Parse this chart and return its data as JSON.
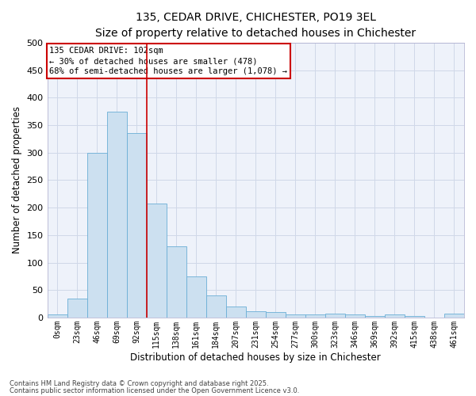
{
  "title_line1": "135, CEDAR DRIVE, CHICHESTER, PO19 3EL",
  "title_line2": "Size of property relative to detached houses in Chichester",
  "xlabel": "Distribution of detached houses by size in Chichester",
  "ylabel": "Number of detached properties",
  "annotation_line1": "135 CEDAR DRIVE: 102sqm",
  "annotation_line2": "← 30% of detached houses are smaller (478)",
  "annotation_line3": "68% of semi-detached houses are larger (1,078) →",
  "bar_color": "#cce0f0",
  "bar_edge_color": "#6aaed6",
  "vline_color": "#cc0000",
  "annotation_box_color": "#cc0000",
  "grid_color": "#d0d8e8",
  "bg_color": "#eef2fa",
  "categories": [
    "0sqm",
    "23sqm",
    "46sqm",
    "69sqm",
    "92sqm",
    "115sqm",
    "138sqm",
    "161sqm",
    "184sqm",
    "207sqm",
    "231sqm",
    "254sqm",
    "277sqm",
    "300sqm",
    "323sqm",
    "346sqm",
    "369sqm",
    "392sqm",
    "415sqm",
    "438sqm",
    "461sqm"
  ],
  "values": [
    5,
    35,
    300,
    375,
    335,
    208,
    130,
    75,
    40,
    20,
    12,
    10,
    5,
    5,
    7,
    5,
    3,
    5,
    3,
    0,
    7
  ],
  "vline_x": 4.5,
  "ylim": [
    0,
    500
  ],
  "yticks": [
    0,
    50,
    100,
    150,
    200,
    250,
    300,
    350,
    400,
    450,
    500
  ],
  "footnote1": "Contains HM Land Registry data © Crown copyright and database right 2025.",
  "footnote2": "Contains public sector information licensed under the Open Government Licence v3.0."
}
